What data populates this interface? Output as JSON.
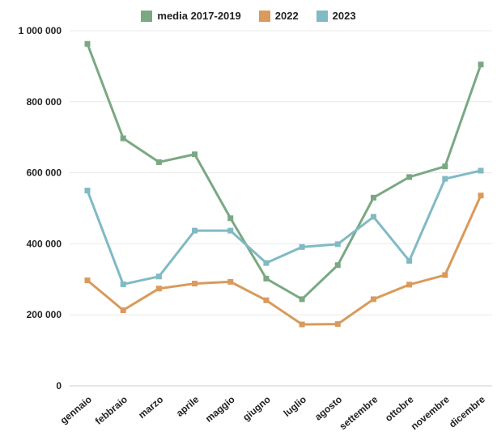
{
  "chart_data": {
    "type": "line",
    "categories": [
      "gennaio",
      "febbraio",
      "marzo",
      "aprile",
      "maggio",
      "giugno",
      "luglio",
      "agosto",
      "settembre",
      "ottobre",
      "novembre",
      "dicembre"
    ],
    "series": [
      {
        "name": "media 2017-2019",
        "color": "#7aa883",
        "values": [
          963000,
          697000,
          630000,
          652000,
          472000,
          302000,
          244000,
          340000,
          530000,
          588000,
          618000,
          905000
        ]
      },
      {
        "name": "2022",
        "color": "#d99a5b",
        "values": [
          297000,
          213000,
          274000,
          288000,
          293000,
          241000,
          173000,
          174000,
          244000,
          285000,
          312000,
          536000
        ]
      },
      {
        "name": "2023",
        "color": "#80bac4",
        "values": [
          550000,
          286000,
          308000,
          437000,
          437000,
          346000,
          391000,
          399000,
          476000,
          352000,
          583000,
          606000
        ]
      }
    ],
    "y_ticks": [
      {
        "value": 0,
        "label": "0"
      },
      {
        "value": 200000,
        "label": "200 000"
      },
      {
        "value": 400000,
        "label": "400 000"
      },
      {
        "value": 600000,
        "label": "600 000"
      },
      {
        "value": 800000,
        "label": "800 000"
      },
      {
        "value": 1000000,
        "label": "1 000 000"
      }
    ],
    "ylim": [
      0,
      1000000
    ],
    "grid": true,
    "legend_position": "top-center",
    "title": "",
    "xlabel": "",
    "ylabel": ""
  }
}
